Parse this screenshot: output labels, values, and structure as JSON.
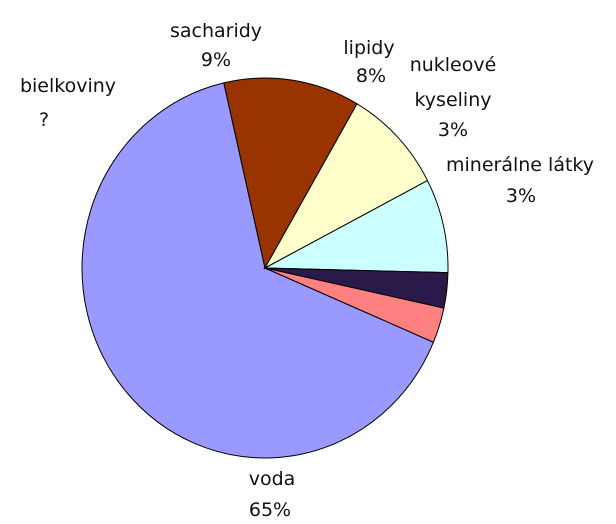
{
  "chart_data": {
    "type": "pie",
    "slices": [
      {
        "label": "voda",
        "value_text": "65%",
        "value": 65,
        "color": "#9999ff"
      },
      {
        "label": "bielkoviny",
        "value_text": "?",
        "value": 12,
        "color": "#993300"
      },
      {
        "label": "sacharidy",
        "value_text": "9%",
        "value": 9,
        "color": "#ffffcc"
      },
      {
        "label": "lipidy",
        "value_text": "8%",
        "value": 8,
        "color": "#ccffff"
      },
      {
        "label": "nukleové kyseliny",
        "value_text": "3%",
        "value": 3,
        "color": "#2a1a4a"
      },
      {
        "label": "minerálne látky",
        "value_text": "3%",
        "value": 3,
        "color": "#ff8080"
      }
    ]
  }
}
